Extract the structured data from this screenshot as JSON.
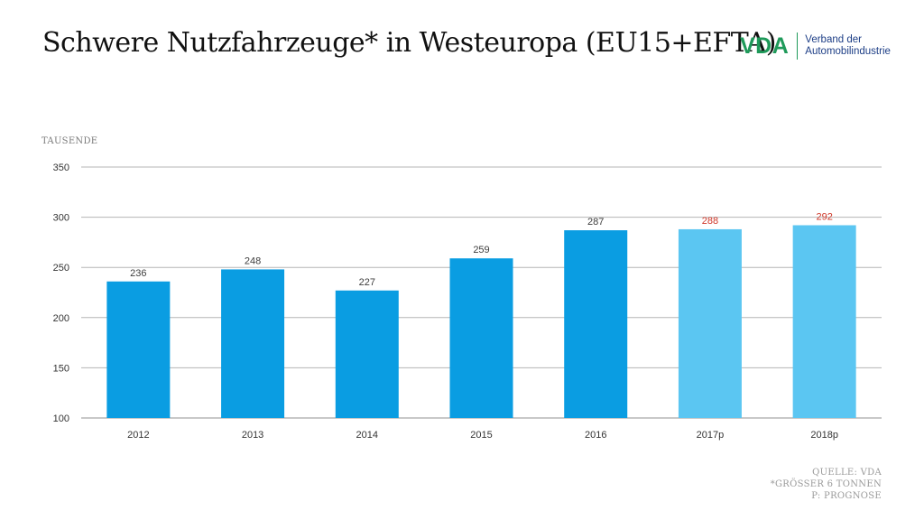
{
  "header": {
    "title": "Schwere Nutzfahrzeuge* in Westeuropa (EU15+EFTA)"
  },
  "logo": {
    "mark": "VDA",
    "line1": "Verband der",
    "line2": "Automobilindustrie",
    "colors": {
      "mark": "#1f9a5a",
      "text": "#1d3e86"
    }
  },
  "unit_label": "TAUSENDE",
  "footnotes": {
    "source": "QUELLE: VDA",
    "note": "*GRÖSSER 6 TONNEN",
    "forecast": "P: PROGNOSE"
  },
  "chart_data": {
    "type": "bar",
    "categories": [
      "2012",
      "2013",
      "2014",
      "2015",
      "2016",
      "2017p",
      "2018p"
    ],
    "values": [
      236,
      248,
      227,
      259,
      287,
      288,
      292
    ],
    "forecast": [
      false,
      false,
      false,
      false,
      false,
      true,
      true
    ],
    "ylim": [
      100,
      350
    ],
    "yticks": [
      100,
      150,
      200,
      250,
      300,
      350
    ],
    "ylabel": "TAUSENDE",
    "grid": true,
    "colors": {
      "actual": "#0a9de2",
      "forecast": "#5bc6f2",
      "label_actual": "#3d3d3d",
      "label_forecast": "#d0392b",
      "grid": "#b5b5b5",
      "tick": "#333333"
    }
  }
}
